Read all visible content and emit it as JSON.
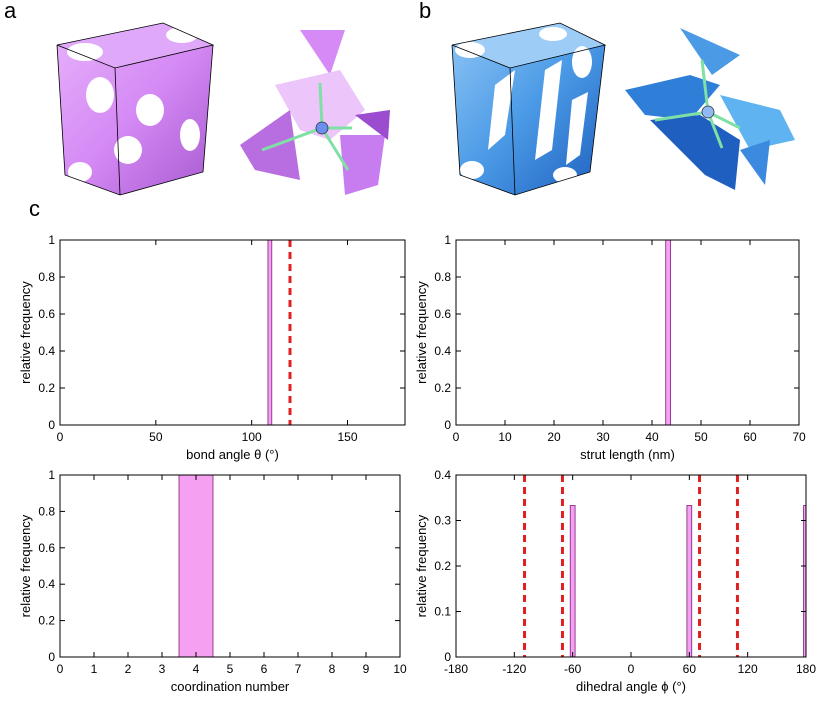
{
  "panel_labels": {
    "a": "a",
    "b": "b",
    "c": "c"
  },
  "colors": {
    "bar_fill": "#f5a0f0",
    "bar_stroke": "#7a1f7a",
    "reference_line": "#e02020",
    "structure_a": "#d58af5",
    "structure_b": "#4b9ae6",
    "strut": "#7fe0a6"
  },
  "illustrations": [
    {
      "name": "gyroid-unit-cell",
      "color": "purple"
    },
    {
      "name": "gyroid-node",
      "color": "purple"
    },
    {
      "name": "diamond-unit-cell",
      "color": "blue"
    },
    {
      "name": "diamond-node",
      "color": "blue"
    }
  ],
  "chart_data": [
    {
      "type": "bar",
      "xlabel": "bond angle θ (°)",
      "ylabel": "relative frequency",
      "xlim": [
        0,
        180
      ],
      "ylim": [
        0,
        1
      ],
      "xticks": [
        0,
        50,
        100,
        150
      ],
      "yticks": [
        0,
        0.2,
        0.4,
        0.6,
        0.8,
        1
      ],
      "bars": [
        {
          "center": 109.5,
          "width": 2,
          "value": 1
        }
      ],
      "reference_lines": [
        120
      ]
    },
    {
      "type": "bar",
      "xlabel": "strut length (nm)",
      "ylabel": "relative frequency",
      "xlim": [
        0,
        70
      ],
      "ylim": [
        0,
        1
      ],
      "xticks": [
        0,
        10,
        20,
        30,
        40,
        50,
        60,
        70
      ],
      "yticks": [
        0,
        0.2,
        0.4,
        0.6,
        0.8,
        1
      ],
      "bars": [
        {
          "center": 43.3,
          "width": 1,
          "value": 1
        }
      ],
      "reference_lines": []
    },
    {
      "type": "bar",
      "xlabel": "coordination number",
      "ylabel": "relative frequency",
      "xlim": [
        0,
        10
      ],
      "ylim": [
        0,
        1
      ],
      "xticks": [
        0,
        1,
        2,
        3,
        4,
        5,
        6,
        7,
        8,
        9,
        10
      ],
      "yticks": [
        0,
        0.2,
        0.4,
        0.6,
        0.8,
        1
      ],
      "bars": [
        {
          "center": 4,
          "width": 1,
          "value": 1
        }
      ],
      "reference_lines": []
    },
    {
      "type": "bar",
      "xlabel": "dihedral angle ϕ (°)",
      "ylabel": "relative frequency",
      "xlim": [
        -180,
        180
      ],
      "ylim": [
        0,
        0.4
      ],
      "xticks": [
        -180,
        -120,
        -60,
        0,
        60,
        120,
        180
      ],
      "yticks": [
        0,
        0.1,
        0.2,
        0.3,
        0.4
      ],
      "bars": [
        {
          "center": -60,
          "width": 5,
          "value": 0.333
        },
        {
          "center": 60,
          "width": 5,
          "value": 0.333
        },
        {
          "center": 180,
          "width": 5,
          "value": 0.333
        }
      ],
      "reference_lines": [
        -109.5,
        -70.5,
        70.5,
        109.5
      ]
    }
  ]
}
